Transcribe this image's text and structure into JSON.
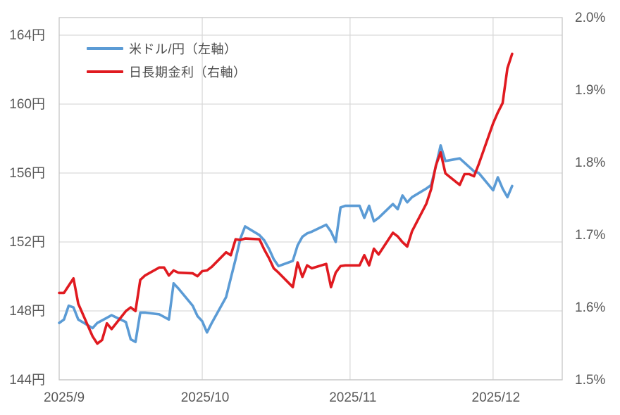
{
  "chart_data": {
    "type": "line",
    "title": "",
    "x_unit": "business days, days offset since 2025/9/1",
    "x_axis": {
      "tick_labels": [
        "2025/9",
        "2025/10",
        "2025/11",
        "2025/12"
      ],
      "tick_days": [
        0,
        30,
        61,
        91
      ],
      "domain_days": [
        0,
        105.5
      ],
      "gridlines": "vertical at month starts"
    },
    "left_axis": {
      "tick_labels": [
        "164円",
        "160円",
        "156円",
        "152円",
        "148円",
        "144円"
      ],
      "tick_values": [
        164,
        160,
        156,
        152,
        148,
        144
      ],
      "unit": "円"
    },
    "right_axis": {
      "tick_labels": [
        "2.0%",
        "1.9%",
        "1.8%",
        "1.7%",
        "1.6%",
        "1.5%"
      ],
      "tick_values": [
        2.0,
        1.9,
        1.8,
        1.7,
        1.6,
        1.5
      ],
      "range": [
        1.5,
        2.0
      ],
      "unit": "%"
    },
    "legend": {
      "position": "top-left-inside"
    },
    "grid": {
      "horizontal": true,
      "vertical": true
    },
    "series": [
      {
        "name": "米ドル/円（左軸）",
        "axis": "left",
        "color": "#5b9bd5",
        "x": [
          0,
          1,
          2,
          3,
          4,
          7,
          8,
          9,
          10,
          11,
          14,
          15,
          16,
          17,
          18,
          21,
          22,
          23,
          24,
          25,
          28,
          29,
          30,
          31,
          32,
          35,
          36,
          37,
          38,
          39,
          42,
          43,
          44,
          45,
          46,
          49,
          50,
          51,
          52,
          53,
          56,
          57,
          58,
          59,
          60,
          63,
          64,
          65,
          66,
          67,
          70,
          71,
          72,
          73,
          74,
          77,
          78,
          79,
          80,
          81,
          84,
          85,
          86,
          87,
          88,
          91,
          92,
          93,
          94,
          95
        ],
        "values": [
          147.3,
          147.5,
          148.3,
          148.2,
          147.5,
          147.0,
          147.3,
          147.45,
          147.6,
          147.75,
          147.35,
          146.35,
          146.2,
          147.9,
          147.9,
          147.8,
          147.65,
          147.5,
          149.6,
          149.3,
          148.3,
          147.7,
          147.4,
          146.75,
          147.3,
          148.8,
          149.9,
          151.0,
          152.2,
          152.9,
          152.4,
          152.1,
          151.6,
          151.0,
          150.6,
          150.9,
          151.8,
          152.3,
          152.5,
          152.6,
          153.0,
          152.6,
          152.0,
          154.0,
          154.1,
          154.1,
          153.4,
          154.1,
          153.2,
          153.4,
          154.2,
          153.9,
          154.7,
          154.3,
          154.6,
          155.1,
          155.3,
          156.4,
          157.6,
          156.7,
          156.85,
          156.6,
          156.35,
          156.1,
          156.0,
          155.0,
          155.75,
          155.1,
          154.6,
          155.25
        ]
      },
      {
        "name": "日長期金利（右軸）",
        "axis": "right",
        "color": "#e01a20",
        "x": [
          0,
          1,
          2,
          3,
          4,
          7,
          8,
          9,
          10,
          11,
          14,
          15,
          16,
          17,
          18,
          21,
          22,
          23,
          24,
          25,
          28,
          29,
          30,
          31,
          32,
          35,
          36,
          37,
          38,
          39,
          42,
          43,
          44,
          45,
          46,
          49,
          50,
          51,
          52,
          53,
          56,
          57,
          58,
          59,
          60,
          63,
          64,
          65,
          66,
          67,
          70,
          71,
          72,
          73,
          74,
          77,
          78,
          79,
          80,
          81,
          84,
          85,
          86,
          87,
          88,
          91,
          92,
          93,
          94,
          95
        ],
        "values": [
          1.62,
          1.62,
          1.63,
          1.64,
          1.605,
          1.56,
          1.55,
          1.555,
          1.578,
          1.57,
          1.595,
          1.6,
          1.595,
          1.638,
          1.644,
          1.655,
          1.655,
          1.644,
          1.651,
          1.648,
          1.647,
          1.643,
          1.65,
          1.651,
          1.656,
          1.676,
          1.672,
          1.694,
          1.693,
          1.695,
          1.694,
          1.68,
          1.668,
          1.654,
          1.648,
          1.628,
          1.662,
          1.642,
          1.658,
          1.654,
          1.66,
          1.628,
          1.648,
          1.657,
          1.658,
          1.658,
          1.672,
          1.658,
          1.681,
          1.673,
          1.703,
          1.698,
          1.69,
          1.684,
          1.705,
          1.743,
          1.763,
          1.796,
          1.814,
          1.785,
          1.769,
          1.784,
          1.784,
          1.781,
          1.798,
          1.854,
          1.869,
          1.882,
          1.93,
          1.95
        ]
      }
    ]
  },
  "styles": {
    "grid_color": "#d9d9d9",
    "border_color": "#c6c6c6",
    "axis_label_color": "#595959",
    "legend_text_color": "#4d4d4d",
    "background": "#ffffff",
    "line_width": 3.6
  }
}
